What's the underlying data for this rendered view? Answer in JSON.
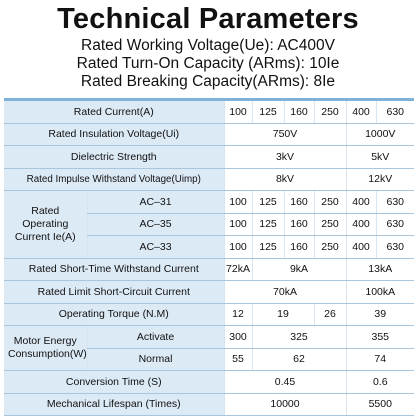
{
  "header": {
    "title": "Technical Parameters",
    "lines": [
      "Rated Working Voltage(Ue): AC400V",
      "Rated Turn-On Capacity (ARms): 10Ie",
      "Rated Breaking Capacity(ARms): 8Ie"
    ]
  },
  "table": {
    "rated_current": {
      "label": "Rated Current(A)",
      "values": [
        "100",
        "125",
        "160",
        "250",
        "400",
        "630"
      ]
    },
    "insulation_voltage": {
      "label": "Rated Insulation Voltage(Ui)",
      "values": [
        "750V",
        "1000V"
      ]
    },
    "dielectric_strength": {
      "label": "Dielectric Strength",
      "values": [
        "3kV",
        "5kV"
      ]
    },
    "impulse_voltage": {
      "label": "Rated Impulse Withstand Voltage(Uimp)",
      "values": [
        "8kV",
        "12kV"
      ]
    },
    "operating_current": {
      "label": "Rated Operating Current Ie(A)",
      "rows": [
        {
          "category": "AC–31",
          "values": [
            "100",
            "125",
            "160",
            "250",
            "400",
            "630"
          ]
        },
        {
          "category": "AC–35",
          "values": [
            "100",
            "125",
            "160",
            "250",
            "400",
            "630"
          ]
        },
        {
          "category": "AC–33",
          "values": [
            "100",
            "125",
            "160",
            "250",
            "400",
            "630"
          ]
        }
      ]
    },
    "short_time_current": {
      "label": "Rated Short-Time Withstand Current",
      "values": [
        "72kA",
        "9kA",
        "13kA"
      ]
    },
    "limit_short_circuit": {
      "label": "Rated Limit Short-Circuit Current",
      "values": [
        "70kA",
        "100kA"
      ]
    },
    "operating_torque": {
      "label": "Operating Torque (N.M)",
      "values": [
        "12",
        "19",
        "26",
        "39"
      ]
    },
    "motor_energy": {
      "label": "Motor Energy Consumption(W)",
      "rows": [
        {
          "mode": "Activate",
          "values": [
            "300",
            "325",
            "355"
          ]
        },
        {
          "mode": "Normal",
          "values": [
            "55",
            "62",
            "74"
          ]
        }
      ]
    },
    "conversion_time": {
      "label": "Conversion Time (S)",
      "values": [
        "0.45",
        "0.6"
      ]
    },
    "mechanical_lifespan": {
      "label": "Mechanical Lifespan (Times)",
      "values": [
        "10000",
        "5500"
      ]
    }
  }
}
